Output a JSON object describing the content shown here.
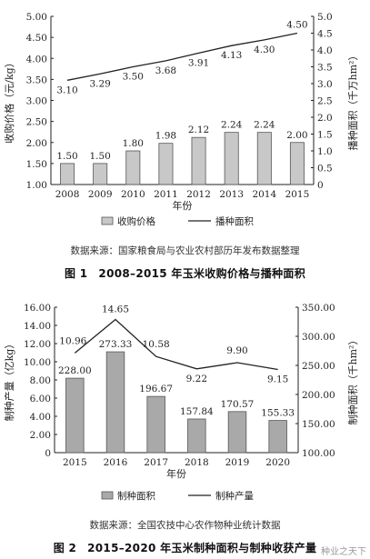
{
  "figure1": {
    "caption_number": "图 1",
    "caption_text": "2008–2015 年玉米收购价格与播种面积",
    "source": "数据来源：国家粮食局与农业农村部历年发布数据整理"
  },
  "figure2": {
    "caption_number": "图 2",
    "caption_text": "2015–2020 年玉米制种面积与制种收获产量",
    "source": "数据来源：全国农技中心农作物种业统计数据"
  },
  "watermark": "种业之天下",
  "chart_data": [
    {
      "type": "bar",
      "xlabel": "年份",
      "ylabel": "收购价格（元/kg）",
      "y2label": "播种面积（千万hm²）",
      "categories": [
        "2008",
        "2009",
        "2010",
        "2011",
        "2012",
        "2013",
        "2014",
        "2015"
      ],
      "ylim": [
        1.0,
        5.0
      ],
      "yticks": [
        "1.00",
        "1.50",
        "2.00",
        "2.50",
        "3.00",
        "3.50",
        "4.00",
        "4.50",
        "5.00"
      ],
      "y2lim": [
        0,
        5
      ],
      "y2ticks": [
        "0",
        "0.5",
        "1.0",
        "1.5",
        "2.0",
        "2.5",
        "3.0",
        "3.5",
        "4.0",
        "4.5",
        "5.0"
      ],
      "series": [
        {
          "name": "收购价格",
          "kind": "bar",
          "axis": "left",
          "values": [
            1.5,
            1.5,
            1.8,
            1.98,
            2.12,
            2.24,
            2.24,
            2.0
          ],
          "labels": [
            "1.50",
            "1.50",
            "1.80",
            "1.98",
            "2.12",
            "2.24",
            "2.24",
            "2.00"
          ]
        },
        {
          "name": "播种面积",
          "kind": "line",
          "axis": "right",
          "values": [
            3.1,
            3.29,
            3.5,
            3.68,
            3.91,
            4.13,
            4.3,
            4.5
          ],
          "labels": [
            "3.10",
            "3.29",
            "3.50",
            "3.68",
            "3.91",
            "4.13",
            "4.30",
            "4.50"
          ]
        }
      ],
      "legend_position": "bottom",
      "colors": {
        "bar": "#c8c8c8",
        "bar_stroke": "#555555",
        "line": "#222222"
      }
    },
    {
      "type": "bar",
      "xlabel": "年份",
      "ylabel": "制种产量（亿kg）",
      "y2label": "制种面积（千hm²）",
      "categories": [
        "2015",
        "2016",
        "2017",
        "2018",
        "2019",
        "2020"
      ],
      "ylim": [
        0,
        16
      ],
      "yticks": [
        "0",
        "2.00",
        "4.00",
        "6.00",
        "8.00",
        "10.00",
        "12.00",
        "14.00",
        "16.00"
      ],
      "y2lim": [
        100,
        350
      ],
      "y2ticks": [
        "100.00",
        "150.00",
        "200.00",
        "250.00",
        "300.00",
        "350.00"
      ],
      "series": [
        {
          "name": "制种面积",
          "kind": "bar",
          "axis": "right",
          "values": [
            228.0,
            273.33,
            196.67,
            157.84,
            170.57,
            155.33
          ],
          "labels": [
            "228.00",
            "273.33",
            "196.67",
            "157.84",
            "170.57",
            "155.33"
          ]
        },
        {
          "name": "制种产量",
          "kind": "line",
          "axis": "left",
          "values": [
            10.96,
            14.65,
            10.58,
            9.22,
            9.9,
            9.15
          ],
          "labels": [
            "10.96",
            "14.65",
            "10.58",
            "9.22",
            "9.90",
            "9.15"
          ]
        }
      ],
      "legend_position": "bottom",
      "colors": {
        "bar": "#a9a9a9",
        "bar_stroke": "#555555",
        "line": "#222222"
      }
    }
  ]
}
